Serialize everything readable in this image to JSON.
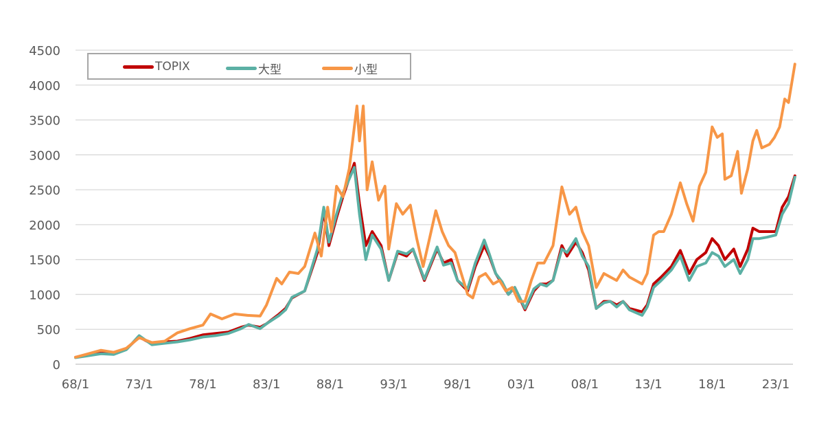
{
  "chart_data": {
    "type": "line",
    "title": "",
    "xlabel": "",
    "ylabel": "",
    "ylim": [
      0,
      4500
    ],
    "yticks": [
      0,
      500,
      1000,
      1500,
      2000,
      2500,
      3000,
      3500,
      4000,
      4500
    ],
    "xticks": [
      "68/1",
      "73/1",
      "78/1",
      "83/1",
      "88/1",
      "93/1",
      "98/1",
      "03/1",
      "08/1",
      "13/1",
      "18/1",
      "23/1"
    ],
    "grid": "horizontal",
    "legend_position": "top-left",
    "series": [
      {
        "name": "TOPIX",
        "color": "#c00000",
        "x": [
          1968,
          1970,
          1971,
          1972,
          1973,
          1974,
          1975,
          1976,
          1977,
          1978,
          1979,
          1980,
          1981,
          1981.6,
          1982.5,
          1983,
          1984,
          1984.5,
          1985,
          1986,
          1987,
          1987.5,
          1987.9,
          1988.5,
          1989,
          1989.9,
          1990.3,
          1990.8,
          1991.3,
          1992,
          1992.6,
          1993.3,
          1994,
          1994.5,
          1995.4,
          1996.4,
          1996.9,
          1997.5,
          1998,
          1998.8,
          1999.4,
          2000.1,
          2000.5,
          2001,
          2001.5,
          2002,
          2002.5,
          2003.3,
          2004,
          2004.5,
          2005,
          2005.5,
          2006.2,
          2006.6,
          2007.3,
          2007.8,
          2008.3,
          2008.9,
          2009.5,
          2010,
          2010.5,
          2011,
          2011.5,
          2012.5,
          2012.9,
          2013.4,
          2014,
          2014.8,
          2015.5,
          2016.2,
          2016.8,
          2017.5,
          2018,
          2018.5,
          2019,
          2019.7,
          2020.2,
          2020.8,
          2021.2,
          2021.7,
          2022.3,
          2023,
          2023.5,
          2024,
          2024.5
        ],
        "y": [
          100,
          160,
          150,
          220,
          390,
          290,
          320,
          330,
          370,
          420,
          440,
          460,
          530,
          560,
          530,
          580,
          720,
          800,
          950,
          1050,
          1600,
          2200,
          1700,
          2100,
          2400,
          2880,
          2300,
          1700,
          1900,
          1700,
          1200,
          1600,
          1550,
          1650,
          1200,
          1650,
          1450,
          1500,
          1200,
          1050,
          1400,
          1700,
          1550,
          1300,
          1150,
          1000,
          1100,
          780,
          1050,
          1150,
          1150,
          1200,
          1700,
          1550,
          1750,
          1600,
          1350,
          800,
          900,
          900,
          850,
          900,
          800,
          750,
          850,
          1150,
          1250,
          1400,
          1630,
          1300,
          1500,
          1600,
          1800,
          1700,
          1500,
          1650,
          1400,
          1650,
          1950,
          1900,
          1900,
          1900,
          2250,
          2400,
          2700
        ]
      },
      {
        "name": "大型",
        "color": "#5bb0a4",
        "x": [
          1968,
          1970,
          1971,
          1972,
          1973,
          1974,
          1975,
          1976,
          1977,
          1978,
          1979,
          1980,
          1981,
          1981.6,
          1982.5,
          1983,
          1984,
          1984.5,
          1985,
          1986,
          1987,
          1987.5,
          1987.9,
          1988.5,
          1989,
          1989.9,
          1990.3,
          1990.8,
          1991.3,
          1992,
          1992.6,
          1993.3,
          1994,
          1994.5,
          1995.4,
          1996.4,
          1996.9,
          1997.5,
          1998,
          1998.8,
          1999.4,
          2000.1,
          2000.5,
          2001,
          2001.5,
          2002,
          2002.5,
          2003.3,
          2004,
          2004.5,
          2005,
          2005.5,
          2006.2,
          2006.6,
          2007.3,
          2007.8,
          2008.3,
          2008.9,
          2009.5,
          2010,
          2010.5,
          2011,
          2011.5,
          2012.5,
          2012.9,
          2013.4,
          2014,
          2014.8,
          2015.5,
          2016.2,
          2016.8,
          2017.5,
          2018,
          2018.5,
          2019,
          2019.7,
          2020.2,
          2020.8,
          2021.2,
          2021.7,
          2022.3,
          2023,
          2023.5,
          2024,
          2024.5
        ],
        "y": [
          95,
          150,
          140,
          210,
          410,
          280,
          300,
          320,
          350,
          390,
          410,
          440,
          510,
          570,
          510,
          580,
          700,
          780,
          960,
          1050,
          1650,
          2250,
          1750,
          2150,
          2450,
          2820,
          2150,
          1500,
          1850,
          1650,
          1200,
          1620,
          1580,
          1650,
          1220,
          1680,
          1420,
          1450,
          1200,
          1080,
          1450,
          1780,
          1580,
          1300,
          1180,
          1000,
          1100,
          800,
          1080,
          1150,
          1120,
          1200,
          1650,
          1600,
          1800,
          1550,
          1400,
          800,
          880,
          900,
          820,
          900,
          780,
          700,
          820,
          1100,
          1200,
          1350,
          1550,
          1200,
          1400,
          1450,
          1600,
          1550,
          1400,
          1500,
          1300,
          1500,
          1800,
          1800,
          1820,
          1850,
          2150,
          2300,
          2680
        ]
      },
      {
        "name": "小型",
        "color": "#f79646",
        "x": [
          1968,
          1970,
          1971,
          1972,
          1973,
          1974,
          1975,
          1976,
          1977,
          1978,
          1978.6,
          1979.5,
          1980.5,
          1981.5,
          1982.5,
          1983,
          1983.8,
          1984.2,
          1984.8,
          1985.5,
          1986,
          1986.8,
          1987.3,
          1987.8,
          1988.1,
          1988.5,
          1989,
          1989.5,
          1989.9,
          1990.1,
          1990.3,
          1990.6,
          1990.9,
          1991.3,
          1991.8,
          1992.3,
          1992.6,
          1993.2,
          1993.7,
          1994.3,
          1994.8,
          1995.3,
          1995.8,
          1996.3,
          1996.8,
          1997.3,
          1997.8,
          1998.3,
          1998.8,
          1999.2,
          1999.7,
          2000.2,
          2000.8,
          2001.3,
          2001.8,
          2002.3,
          2002.8,
          2003.3,
          2003.8,
          2004.3,
          2004.8,
          2005.5,
          2006,
          2006.2,
          2006.8,
          2007.3,
          2007.8,
          2008.3,
          2008.9,
          2009.5,
          2010,
          2010.5,
          2011,
          2011.5,
          2012.5,
          2012.9,
          2013.4,
          2013.8,
          2014.2,
          2014.8,
          2015.5,
          2016,
          2016.5,
          2017,
          2017.5,
          2018,
          2018.4,
          2018.8,
          2019,
          2019.5,
          2020,
          2020.3,
          2020.8,
          2021.2,
          2021.5,
          2021.9,
          2022.5,
          2022.9,
          2023.3,
          2023.7,
          2024,
          2024.5
        ],
        "y": [
          100,
          200,
          170,
          230,
          380,
          310,
          330,
          450,
          510,
          560,
          720,
          650,
          720,
          700,
          690,
          850,
          1230,
          1150,
          1320,
          1300,
          1400,
          1880,
          1550,
          2250,
          1900,
          2550,
          2400,
          2800,
          3400,
          3700,
          3200,
          3700,
          2500,
          2900,
          2350,
          2550,
          1650,
          2300,
          2150,
          2280,
          1800,
          1400,
          1800,
          2200,
          1900,
          1700,
          1600,
          1300,
          1000,
          950,
          1250,
          1300,
          1150,
          1200,
          1050,
          1100,
          900,
          900,
          1200,
          1450,
          1450,
          1700,
          2300,
          2540,
          2150,
          2250,
          1900,
          1700,
          1100,
          1300,
          1250,
          1200,
          1350,
          1250,
          1150,
          1300,
          1850,
          1900,
          1900,
          2150,
          2600,
          2300,
          2050,
          2550,
          2750,
          3400,
          3250,
          3300,
          2650,
          2700,
          3050,
          2450,
          2800,
          3200,
          3350,
          3100,
          3150,
          3250,
          3400,
          3800,
          3750,
          4300
        ]
      }
    ]
  }
}
